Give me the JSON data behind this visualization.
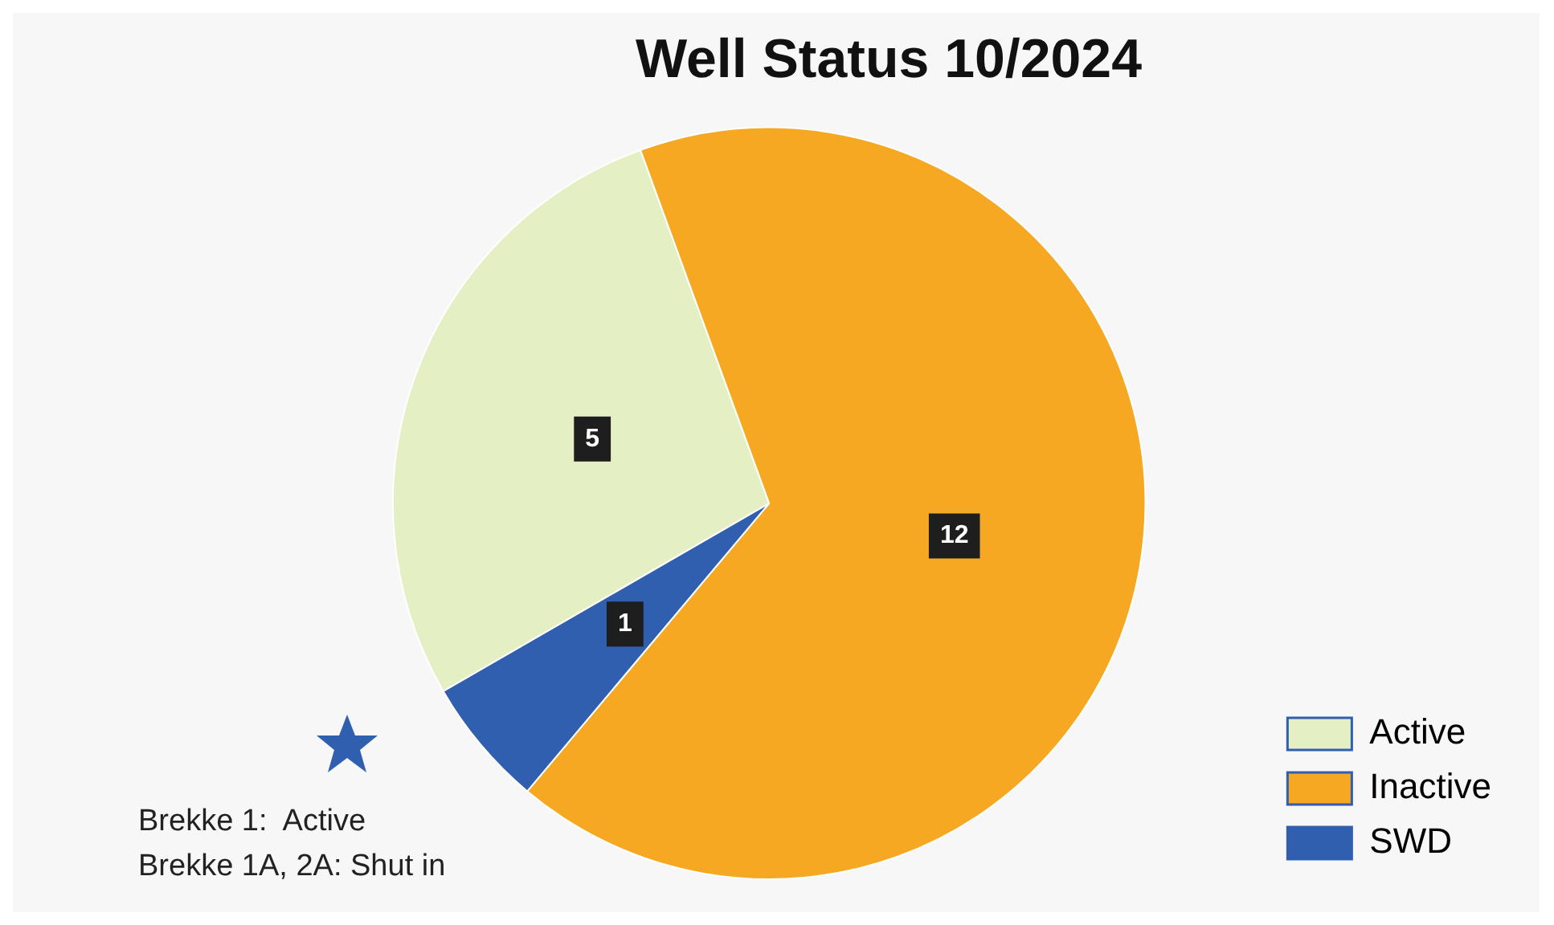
{
  "chart_data": {
    "type": "pie",
    "title": "Well Status 10/2024",
    "categories": [
      "Active",
      "Inactive",
      "SWD"
    ],
    "values": [
      5,
      12,
      1
    ],
    "colors": [
      "#e4f0c4",
      "#f7a823",
      "#2f5fae"
    ],
    "data_labels": true,
    "legend": "bottom right",
    "annotations": [
      "Brekke 1:  Active",
      "Brekke 1A, 2A: Shut in"
    ]
  }
}
